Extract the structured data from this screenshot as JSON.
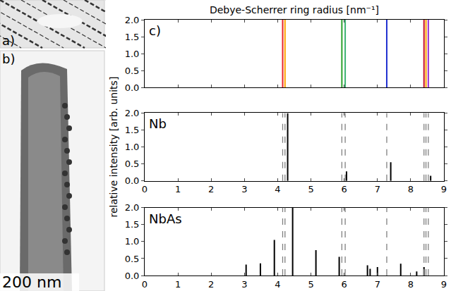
{
  "panels": {
    "a": {
      "label": "a)"
    },
    "b": {
      "label": "b)",
      "scale_label": "200 nm"
    }
  },
  "figure": {
    "xlabel": "Debye-Scherrer ring radius [nm⁻¹]",
    "ylabel": "relative intensity [arb. units]"
  },
  "chart_data": [
    {
      "type": "stem",
      "title": "c)",
      "x": [
        4.15,
        4.22,
        5.93,
        6.03,
        7.28,
        8.4,
        8.46,
        8.53
      ],
      "values": [
        2.0,
        2.0,
        2.0,
        2.0,
        2.0,
        2.0,
        2.0,
        2.0
      ],
      "colors": [
        "#e8262a",
        "#ffa500",
        "#2ca02c",
        "#3cb371",
        "#1f2fd0",
        "#c8102e",
        "#ffa500",
        "#9b30d0"
      ],
      "xlim": [
        0,
        9
      ],
      "xticks": [
        0,
        1,
        2,
        3,
        4,
        5,
        6,
        7,
        8,
        9
      ],
      "ylim": [
        0,
        2
      ],
      "yticks": [
        {
          "value": 0,
          "label": "0.0"
        },
        {
          "value": 0.5,
          "label": "0.5"
        },
        {
          "value": 1,
          "label": "1.0"
        },
        {
          "value": 1.5,
          "label": "1.5"
        },
        {
          "value": 2,
          "label": "2.0"
        }
      ],
      "tick_labels": "y"
    },
    {
      "type": "stem",
      "title": "Nb",
      "x": [
        4.3,
        6.07,
        7.4,
        8.6
      ],
      "values": [
        2.0,
        0.28,
        0.55,
        0.15
      ],
      "color": "#000000",
      "reference_lines": {
        "x": [
          4.15,
          4.22,
          5.93,
          6.03,
          7.28,
          8.4,
          8.46,
          8.53
        ],
        "line_style": "dashed",
        "color": "#808080"
      },
      "xlim": [
        0,
        9
      ],
      "xticks": [
        0,
        1,
        2,
        3,
        4,
        5,
        6,
        7,
        8,
        9
      ],
      "ylim": [
        0,
        2
      ],
      "yticks": [
        {
          "value": 0,
          "label": "0.0"
        },
        {
          "value": 0.5,
          "label": "0.5"
        },
        {
          "value": 1,
          "label": "1.0"
        },
        {
          "value": 1.5,
          "label": "1.5"
        },
        {
          "value": 2,
          "label": "2.0"
        }
      ]
    },
    {
      "type": "stem",
      "title": "NbAs",
      "x": [
        3.05,
        3.48,
        3.9,
        4.45,
        5.15,
        5.85,
        6.7,
        6.78,
        7.0,
        7.7,
        8.18,
        8.4
      ],
      "values": [
        0.32,
        0.36,
        1.05,
        2.0,
        0.75,
        0.55,
        0.3,
        0.2,
        0.25,
        0.35,
        0.12,
        0.25
      ],
      "color": "#000000",
      "reference_lines": {
        "x": [
          4.15,
          4.22,
          5.93,
          6.03,
          7.28,
          8.4,
          8.46,
          8.53
        ],
        "line_style": "dashed",
        "color": "#808080"
      },
      "xlim": [
        0,
        9
      ],
      "xticks": [
        0,
        1,
        2,
        3,
        4,
        5,
        6,
        7,
        8,
        9
      ],
      "ylim": [
        0,
        2
      ],
      "yticks": [
        {
          "value": 0,
          "label": "0.0"
        },
        {
          "value": 0.5,
          "label": "0.5"
        },
        {
          "value": 1,
          "label": "1.0"
        },
        {
          "value": 1.5,
          "label": "1.5"
        },
        {
          "value": 2,
          "label": "2.0"
        }
      ]
    }
  ]
}
